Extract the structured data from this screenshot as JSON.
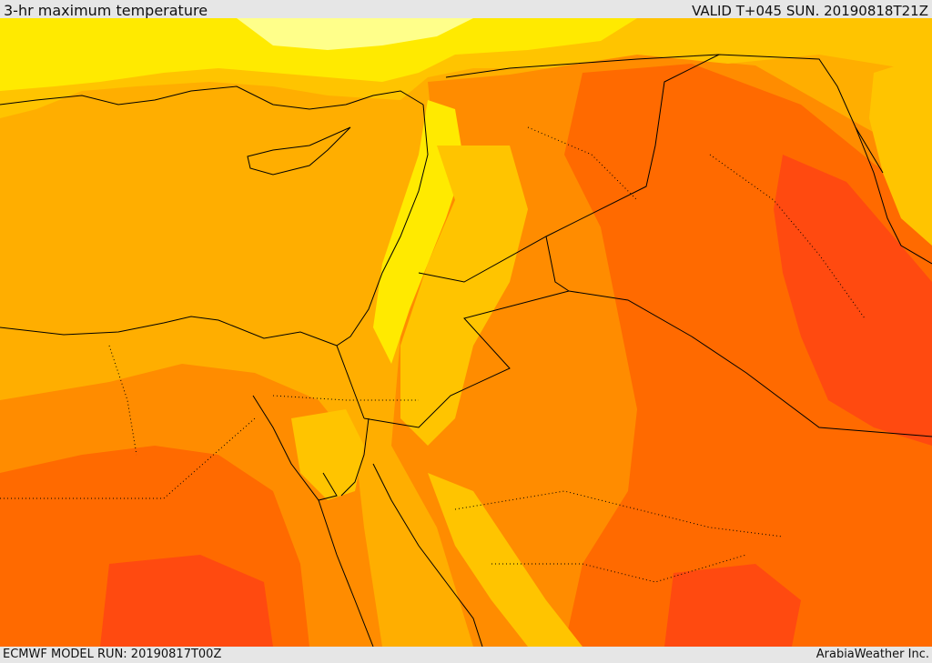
{
  "header": {
    "title": "3-hr maximum temperature",
    "valid_time": "VALID T+045 SUN. 20190818T21Z"
  },
  "footer": {
    "model_run": "ECMWF MODEL RUN: 20190817T00Z",
    "credit": "ArabiaWeather Inc."
  },
  "colors": {
    "bar_background": "#e6e6e6",
    "sea": "#ffae00",
    "pale_yellow": "#ffff8a",
    "yellow": "#ffea00",
    "light_orange": "#ffc400",
    "orange": "#ff8c00",
    "dark_orange": "#ff6a00",
    "red_orange": "#ff4a10",
    "red": "#ff3300",
    "border": "#000000"
  }
}
